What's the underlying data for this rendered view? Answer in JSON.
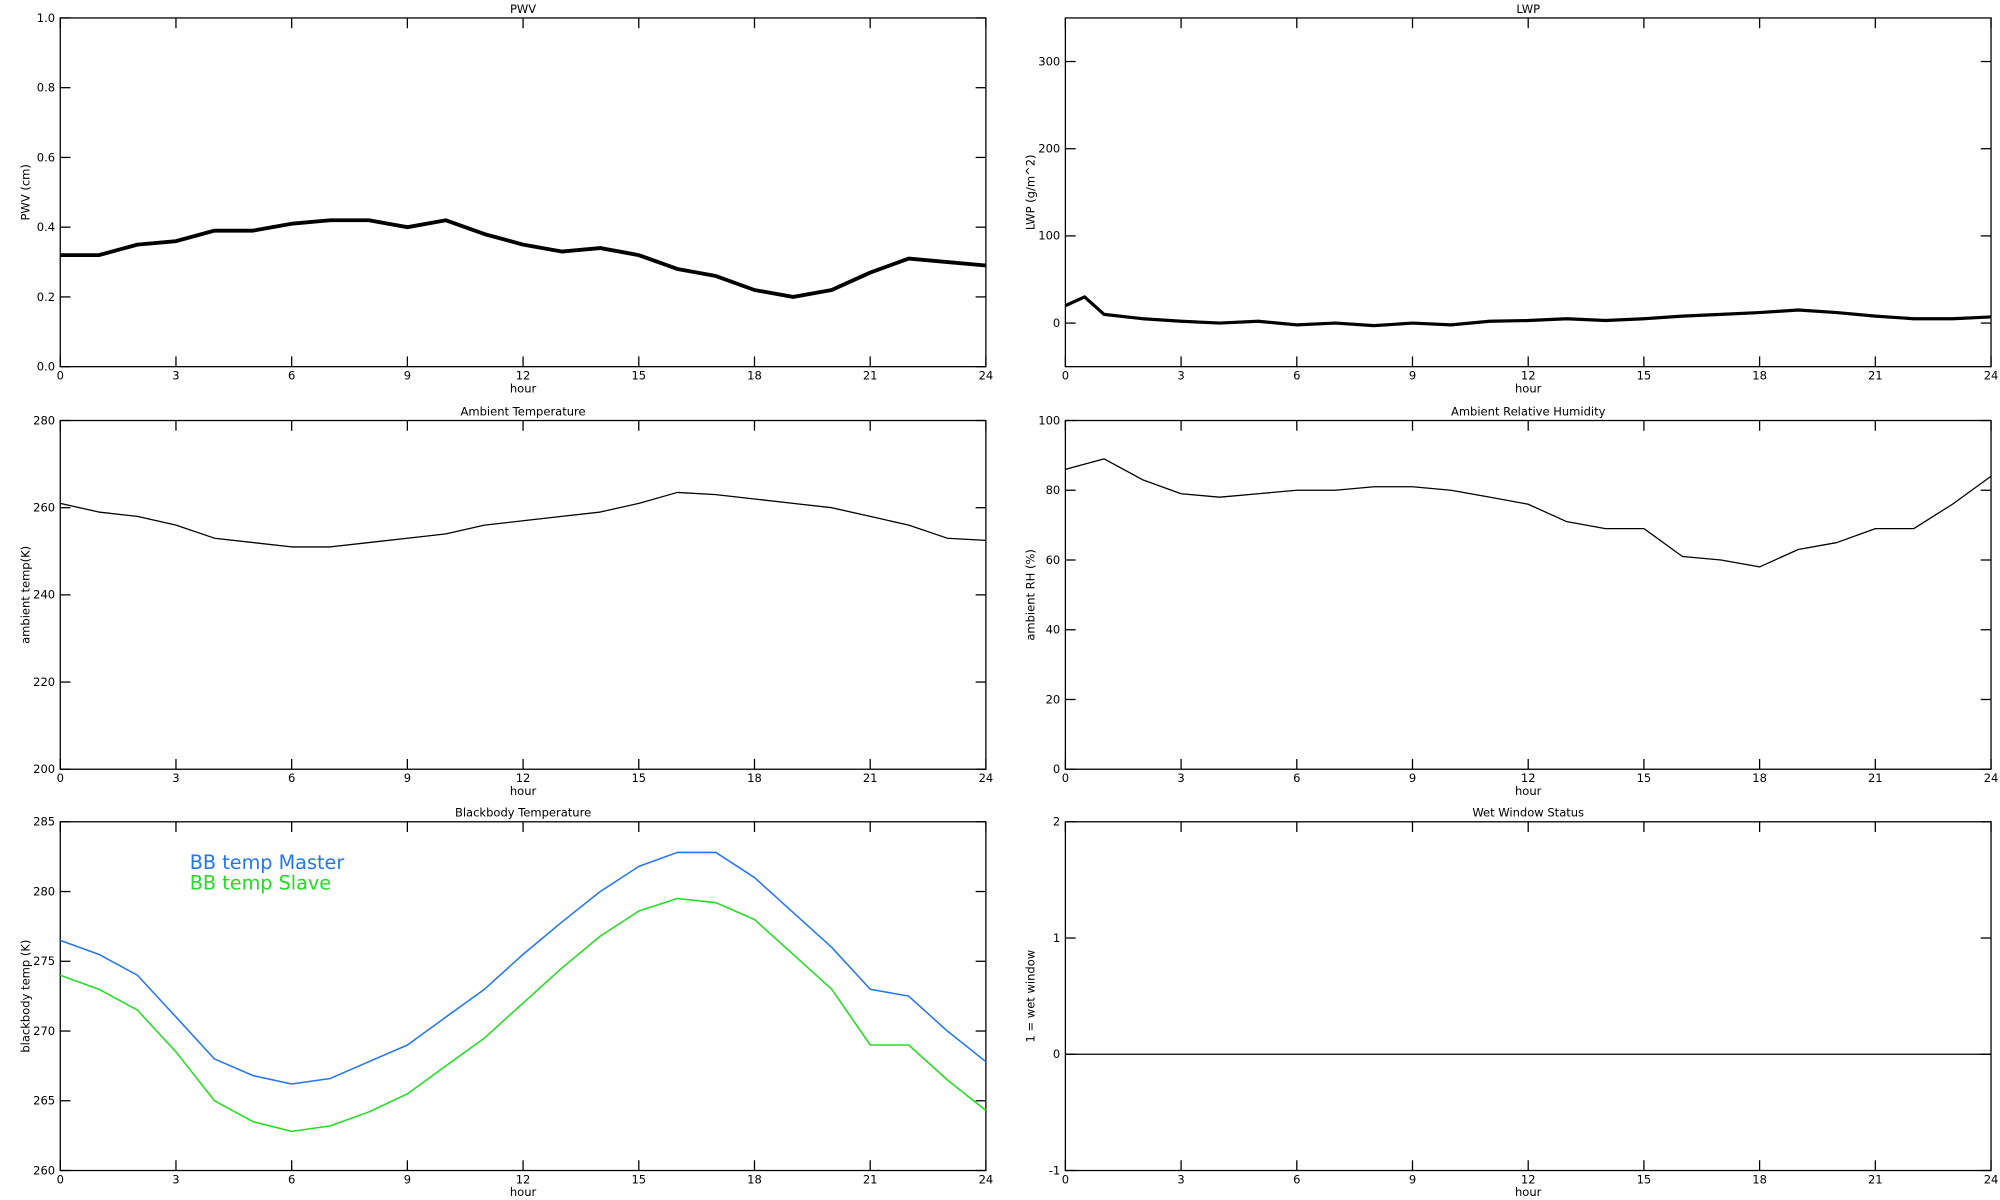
{
  "chart_data": [
    {
      "type": "line",
      "title": "PWV",
      "ylabel": "PWV (cm)",
      "xlabel": "hour",
      "color": "#000000",
      "line_width": 3,
      "x": [
        0,
        1,
        2,
        3,
        4,
        5,
        6,
        7,
        8,
        9,
        10,
        11,
        12,
        13,
        14,
        15,
        16,
        17,
        18,
        19,
        20,
        21,
        22,
        23,
        24
      ],
      "values": [
        0.32,
        0.32,
        0.35,
        0.36,
        0.39,
        0.39,
        0.41,
        0.42,
        0.42,
        0.4,
        0.42,
        0.38,
        0.35,
        0.33,
        0.34,
        0.32,
        0.28,
        0.26,
        0.22,
        0.2,
        0.22,
        0.27,
        0.31,
        0.3,
        0.29
      ],
      "xlim": [
        0,
        24
      ],
      "xticks": [
        0,
        3,
        6,
        9,
        12,
        15,
        18,
        21,
        24
      ],
      "ylim": [
        0,
        1
      ],
      "yticks": [
        {
          "value": 0,
          "label": "0.0"
        },
        0.2,
        0.4,
        0.6,
        0.8,
        {
          "value": 1,
          "label": "1.0"
        }
      ]
    },
    {
      "type": "line",
      "title": "LWP",
      "ylabel": "LWP (g/m^2)",
      "xlabel": "hour",
      "color": "#000000",
      "line_width": 2.5,
      "x": [
        0,
        0.5,
        1,
        2,
        3,
        4,
        5,
        6,
        7,
        8,
        9,
        10,
        11,
        12,
        13,
        14,
        15,
        16,
        17,
        18,
        19,
        20,
        21,
        22,
        23,
        24
      ],
      "values": [
        20,
        30,
        10,
        5,
        2,
        0,
        2,
        -2,
        0,
        -3,
        0,
        -2,
        2,
        3,
        5,
        3,
        5,
        8,
        10,
        12,
        15,
        12,
        8,
        5,
        5,
        7
      ],
      "xlim": [
        0,
        24
      ],
      "xticks": [
        0,
        3,
        6,
        9,
        12,
        15,
        18,
        21,
        24
      ],
      "ylim": [
        -50,
        350
      ],
      "yticks": [
        0,
        100,
        200,
        300
      ]
    },
    {
      "type": "line",
      "title": "Ambient Temperature",
      "ylabel": "ambient temp(K)",
      "xlabel": "hour",
      "color": "#000000",
      "line_width": 1,
      "x": [
        0,
        1,
        2,
        3,
        4,
        5,
        6,
        7,
        8,
        9,
        10,
        11,
        12,
        13,
        14,
        15,
        16,
        17,
        18,
        19,
        20,
        21,
        22,
        23,
        24
      ],
      "values": [
        261,
        259,
        258,
        256,
        253,
        252,
        251,
        251,
        252,
        253,
        254,
        256,
        257,
        258,
        259,
        261,
        263.5,
        263,
        262,
        261,
        260,
        258,
        256,
        253,
        252.5
      ],
      "xlim": [
        0,
        24
      ],
      "xticks": [
        0,
        3,
        6,
        9,
        12,
        15,
        18,
        21,
        24
      ],
      "ylim": [
        200,
        280
      ],
      "yticks": [
        200,
        220,
        240,
        260,
        280
      ]
    },
    {
      "type": "line",
      "title": "Ambient Relative Humidity",
      "ylabel": "ambient RH (%)",
      "xlabel": "hour",
      "color": "#000000",
      "line_width": 1,
      "x": [
        0,
        1,
        2,
        3,
        4,
        5,
        6,
        7,
        8,
        9,
        10,
        11,
        12,
        13,
        14,
        15,
        16,
        17,
        18,
        19,
        20,
        21,
        22,
        23,
        24
      ],
      "values": [
        86,
        89,
        83,
        79,
        78,
        79,
        80,
        80,
        81,
        81,
        80,
        78,
        76,
        71,
        69,
        69,
        61,
        60,
        58,
        63,
        65,
        69,
        69,
        76,
        84
      ],
      "xlim": [
        0,
        24
      ],
      "xticks": [
        0,
        3,
        6,
        9,
        12,
        15,
        18,
        21,
        24
      ],
      "ylim": [
        0,
        100
      ],
      "yticks": [
        0,
        20,
        40,
        60,
        80,
        100
      ]
    },
    {
      "type": "line",
      "title": "Blackbody Temperature",
      "ylabel": "blackbody temp (K)",
      "xlabel": "hour",
      "line_width": 1.2,
      "x": [
        0,
        1,
        2,
        3,
        4,
        5,
        6,
        7,
        8,
        9,
        10,
        11,
        12,
        13,
        14,
        15,
        16,
        17,
        18,
        19,
        20,
        21,
        22,
        23,
        24
      ],
      "series": [
        {
          "name": "BB temp Master",
          "color": "#2277ee",
          "values": [
            276.5,
            275.5,
            274,
            271,
            268,
            266.8,
            266.2,
            266.6,
            267.8,
            269,
            271,
            273,
            275.5,
            277.8,
            280,
            281.8,
            282.8,
            282.8,
            281,
            278.5,
            276,
            273,
            272.5,
            270,
            267.8
          ]
        },
        {
          "name": "BB temp Slave",
          "color": "#22dd22",
          "values": [
            274,
            273,
            271.5,
            268.5,
            265,
            263.5,
            262.8,
            263.2,
            264.2,
            265.5,
            267.5,
            269.5,
            272,
            274.5,
            276.8,
            278.6,
            279.5,
            279.2,
            278,
            275.5,
            273,
            269,
            269,
            266.5,
            264.3
          ]
        }
      ],
      "xlim": [
        0,
        24
      ],
      "xticks": [
        0,
        3,
        6,
        9,
        12,
        15,
        18,
        21,
        24
      ],
      "ylim": [
        260,
        285
      ],
      "yticks": [
        260,
        265,
        270,
        275,
        280,
        285
      ]
    },
    {
      "type": "line",
      "title": "Wet Window Status",
      "ylabel": "1 = wet window",
      "xlabel": "hour",
      "color": "#000000",
      "line_width": 1,
      "x": [
        0,
        24
      ],
      "values": [
        0,
        0
      ],
      "xlim": [
        0,
        24
      ],
      "xticks": [
        0,
        3,
        6,
        9,
        12,
        15,
        18,
        21,
        24
      ],
      "ylim": [
        -1,
        2
      ],
      "yticks": [
        -1,
        0,
        1,
        2
      ]
    }
  ]
}
